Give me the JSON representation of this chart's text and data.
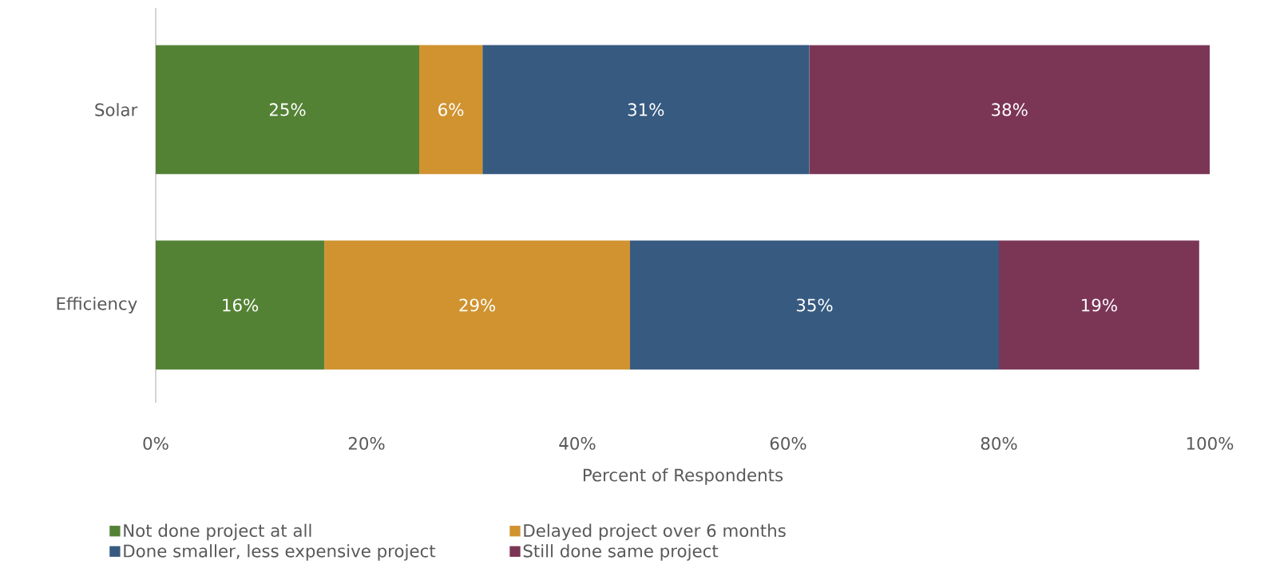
{
  "chart_data": {
    "type": "bar",
    "orientation": "horizontal",
    "stacked": true,
    "categories": [
      "Solar",
      "Efficiency"
    ],
    "xlabel": "Percent of Respondents",
    "xlim": [
      0,
      100
    ],
    "xticks": [
      {
        "value": 0,
        "label": "0%"
      },
      {
        "value": 20,
        "label": "20%"
      },
      {
        "value": 40,
        "label": "40%"
      },
      {
        "value": 60,
        "label": "60%"
      },
      {
        "value": 80,
        "label": "80%"
      },
      {
        "value": 100,
        "label": "100%"
      }
    ],
    "legend": "bottom",
    "grid": false,
    "series": [
      {
        "name": "Not done project at all",
        "color": "#548235",
        "values": [
          25,
          16
        ],
        "value_labels": [
          "25%",
          "16%"
        ]
      },
      {
        "name": "Delayed project over 6 months",
        "color": "#d09330",
        "values": [
          6,
          29
        ],
        "value_labels": [
          "6%",
          "29%"
        ]
      },
      {
        "name": "Done smaller, less expensive project",
        "color": "#375a80",
        "values": [
          31,
          35
        ],
        "value_labels": [
          "31%",
          "35%"
        ]
      },
      {
        "name": "Still done same project",
        "color": "#7b3656",
        "values": [
          38,
          19
        ],
        "value_labels": [
          "38%",
          "19%"
        ]
      }
    ]
  }
}
